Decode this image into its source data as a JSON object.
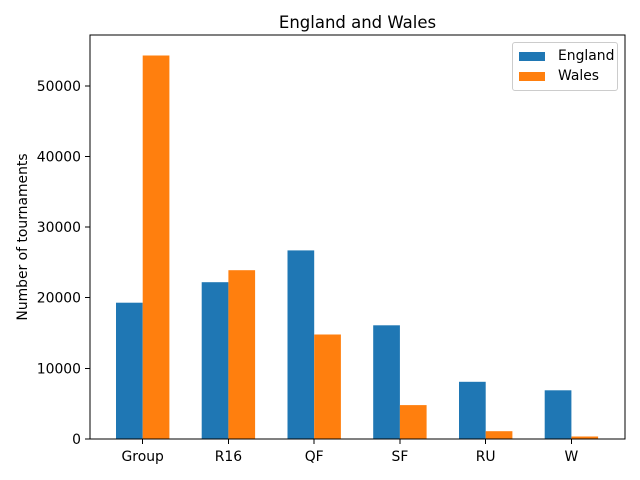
{
  "chart_data": {
    "type": "bar",
    "title": "England and Wales",
    "xlabel": "",
    "ylabel": "Number of tournaments",
    "categories": [
      "Group",
      "R16",
      "QF",
      "SF",
      "RU",
      "W"
    ],
    "series": [
      {
        "name": "England",
        "color": "#1f77b4",
        "values": [
          19300,
          22200,
          26700,
          16100,
          8100,
          6900
        ]
      },
      {
        "name": "Wales",
        "color": "#ff7f0e",
        "values": [
          54300,
          23900,
          14800,
          4800,
          1100,
          350
        ]
      }
    ],
    "yticks": [
      0,
      10000,
      20000,
      30000,
      40000,
      50000
    ],
    "ylim": [
      0,
      57200
    ],
    "grid": false,
    "legend_position": "upper right",
    "background_color": "#ffffff",
    "axis_color": "#000000"
  }
}
